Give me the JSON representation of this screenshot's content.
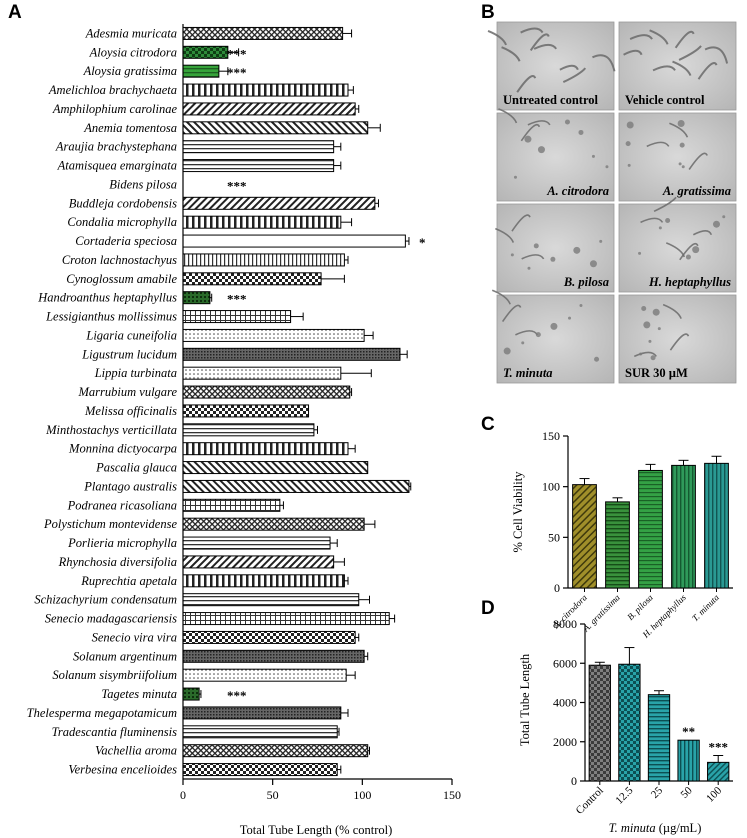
{
  "panels": {
    "a": "A",
    "b": "B",
    "c": "C",
    "d": "D"
  },
  "chart_data": [
    {
      "type": "bar",
      "orientation": "horizontal",
      "xlabel": "Total Tube Length (% control)",
      "xlim": [
        0,
        150
      ],
      "xticks": [
        0,
        50,
        100,
        150
      ],
      "grid": false,
      "categories": [
        "Adesmia muricata",
        "Aloysia citrodora",
        "Aloysia gratissima",
        "Amelichloa brachychaeta",
        "Amphilophium carolinae",
        "Anemia tomentosa",
        "Araujia brachystephana",
        "Atamisquea emarginata",
        "Bidens pilosa",
        "Buddleja cordobensis",
        "Condalia microphylla",
        "Cortaderia speciosa",
        "Croton lachnostachyus",
        "Cynoglossum amabile",
        "Handroanthus heptaphyllus",
        "Lessigianthus mollissimus",
        "Ligaria cuneifolia",
        "Ligustrum lucidum",
        "Lippia turbinata",
        "Marrubium vulgare",
        "Melissa officinalis",
        "Minthostachys verticillata",
        "Monnina dictyocarpa",
        "Pascalia glauca",
        "Plantago australis",
        "Podranea ricasoliana",
        "Polystichum montevidense",
        "Porlieria microphylla",
        "Rhynchosia diversifolia",
        "Ruprechtia apetala",
        "Schizachyrium condensatum",
        "Senecio madagascariensis",
        "Senecio vira vira",
        "Solanum argentinum",
        "Solanum sisymbriifolium",
        "Tagetes minuta",
        "Thelesperma megapotamicum",
        "Tradescantia fluminensis",
        "Vachellia aroma",
        "Verbesina encelioides"
      ],
      "values": [
        89,
        25,
        20,
        92,
        96,
        103,
        84,
        84,
        0,
        107,
        88,
        124,
        90,
        77,
        15,
        60,
        101,
        121,
        88,
        93,
        70,
        73,
        92,
        103,
        126,
        54,
        101,
        82,
        84,
        90,
        98,
        115,
        96,
        101,
        91,
        9,
        88,
        86,
        103,
        86
      ],
      "errors": [
        5,
        6,
        5,
        3,
        2,
        7,
        4,
        4,
        0,
        2,
        6,
        2,
        2,
        13,
        1,
        7,
        5,
        4,
        17,
        1,
        0,
        2,
        4,
        0,
        1,
        2,
        6,
        4,
        6,
        2,
        6,
        3,
        2,
        2,
        5,
        1,
        4,
        1,
        1,
        2
      ],
      "significance": [
        "",
        "***",
        "***",
        "",
        "",
        "",
        "",
        "",
        "***",
        "",
        "",
        "*",
        "",
        "",
        "***",
        "",
        "",
        "",
        "",
        "",
        "",
        "",
        "",
        "",
        "",
        "",
        "",
        "",
        "",
        "",
        "",
        "",
        "",
        "",
        "",
        "***",
        "",
        "",
        "",
        ""
      ]
    },
    {
      "type": "bar",
      "ylabel": "% Cell Viability",
      "ylim": [
        0,
        150
      ],
      "yticks": [
        0,
        50,
        100,
        150
      ],
      "categories": [
        "A. citrodora",
        "A. gratissima",
        "B. pilosa",
        "H. heptaphyllus",
        "T. minuta"
      ],
      "values": [
        102,
        85,
        116,
        121,
        123
      ],
      "errors": [
        6,
        4,
        6,
        5,
        7
      ],
      "colors": [
        "#8a7a1e",
        "#2f7d32",
        "#2e8b3c",
        "#2e8f4a",
        "#2a8c86"
      ]
    },
    {
      "type": "bar",
      "ylabel": "Total Tube Length",
      "xlabel_parts": [
        "T. minuta",
        " (µg/mL)"
      ],
      "ylim": [
        0,
        8000
      ],
      "yticks": [
        0,
        2000,
        4000,
        6000,
        8000
      ],
      "categories": [
        "Control",
        "12.5",
        "25",
        "50",
        "100"
      ],
      "values": [
        5900,
        5950,
        4400,
        2080,
        950
      ],
      "errors": [
        150,
        850,
        200,
        0,
        350
      ],
      "significance": [
        "",
        "",
        "",
        "**",
        "***"
      ],
      "colors": [
        "#7f7f7f",
        "#1f9aa2",
        "#1f9aa2",
        "#1f9aa2",
        "#1f9aa2"
      ]
    }
  ],
  "images": [
    {
      "label": "Untreated control",
      "italic": false
    },
    {
      "label": "Vehicle control",
      "italic": false
    },
    {
      "label": "A. citrodora",
      "italic": true
    },
    {
      "label": "A. gratissima",
      "italic": true
    },
    {
      "label": "B. pilosa",
      "italic": true
    },
    {
      "label": "H. heptaphyllus",
      "italic": true
    },
    {
      "label": "T. minuta",
      "italic": true
    },
    {
      "label": "SUR 30 µM",
      "italic": false
    }
  ]
}
